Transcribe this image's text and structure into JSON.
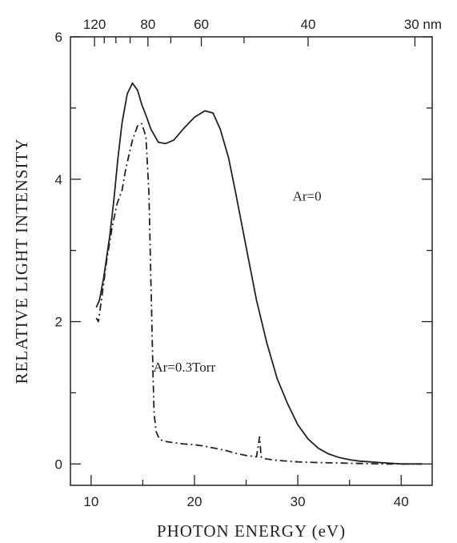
{
  "chart_data": {
    "type": "line",
    "xlabel": "PHOTON ENERGY (eV)",
    "ylabel": "RELATIVE LIGHT INTENSITY",
    "xlim": [
      8,
      43
    ],
    "ylim": [
      -0.3,
      6
    ],
    "x_ticks": [
      10,
      20,
      30,
      40
    ],
    "x_minor_ticks": [
      15,
      25,
      35
    ],
    "y_ticks": [
      0,
      2,
      4,
      6
    ],
    "y_minor_ticks": [
      1,
      3,
      5
    ],
    "top_axis": {
      "unit": "nm",
      "labels": [
        "120",
        "80",
        "60",
        "40",
        "30 nm"
      ],
      "tick_values_nm": [
        120,
        110,
        100,
        90,
        80,
        70,
        60,
        50,
        40,
        30
      ]
    },
    "grid": false,
    "series": [
      {
        "name": "Ar=0",
        "style": "solid",
        "x": [
          10.5,
          10.8,
          11.2,
          11.8,
          12.2,
          12.6,
          13.0,
          13.5,
          14.0,
          14.5,
          14.9,
          15.3,
          15.8,
          16.5,
          17.2,
          18.0,
          19.0,
          20.0,
          21.0,
          21.8,
          22.5,
          23.3,
          24.0,
          25.0,
          26.0,
          27.0,
          28.0,
          29.0,
          30.0,
          31.0,
          32.0,
          33.0,
          34.0,
          35.0,
          36.0,
          37.0,
          38.0,
          39.0,
          40.0,
          41.0,
          42.0
        ],
        "y": [
          2.2,
          2.3,
          2.6,
          3.2,
          3.7,
          4.3,
          4.8,
          5.2,
          5.35,
          5.25,
          5.05,
          4.9,
          4.7,
          4.52,
          4.5,
          4.55,
          4.72,
          4.87,
          4.96,
          4.93,
          4.7,
          4.3,
          3.8,
          3.05,
          2.3,
          1.7,
          1.2,
          0.85,
          0.55,
          0.35,
          0.22,
          0.14,
          0.09,
          0.06,
          0.04,
          0.03,
          0.02,
          0.01,
          0.0,
          0.0,
          0.0
        ]
      },
      {
        "name": "Ar=0.3Torr",
        "style": "dash-dot",
        "x": [
          10.5,
          10.7,
          11.0,
          11.5,
          12.0,
          12.5,
          13.0,
          13.3,
          13.6,
          14.0,
          14.5,
          14.9,
          15.3,
          15.6,
          15.8,
          16.0,
          16.1,
          16.3,
          16.6,
          17.0,
          18.0,
          19.0,
          20.0,
          21.0,
          22.0,
          23.0,
          24.0,
          25.0,
          26.0,
          26.3,
          26.45,
          26.6,
          27.0,
          28.0,
          29.0,
          30.0,
          32.0,
          35.0,
          38.0,
          42.0
        ],
        "y": [
          2.05,
          2.0,
          2.3,
          2.85,
          3.3,
          3.65,
          3.85,
          4.1,
          4.3,
          4.55,
          4.75,
          4.78,
          4.6,
          3.8,
          2.5,
          1.2,
          0.7,
          0.45,
          0.35,
          0.32,
          0.3,
          0.28,
          0.27,
          0.25,
          0.22,
          0.19,
          0.15,
          0.12,
          0.1,
          0.38,
          0.1,
          0.08,
          0.07,
          0.05,
          0.04,
          0.03,
          0.02,
          0.01,
          0.0,
          0.0
        ]
      }
    ],
    "annotations": [
      {
        "text": "Ar=0",
        "x": 29.5,
        "y": 3.7
      },
      {
        "text": "Ar=0.3Torr",
        "x": 16.0,
        "y": 1.3
      }
    ]
  }
}
